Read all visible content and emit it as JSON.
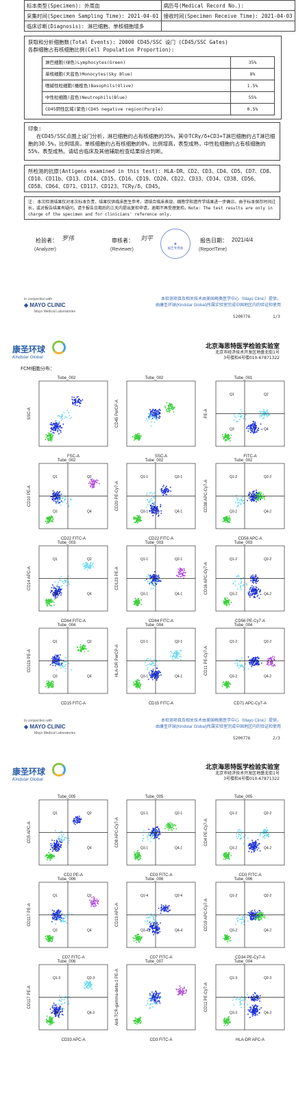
{
  "header_rows": [
    {
      "left": "标本类型(Specimen): 外周血",
      "right": "病历号(Medical Record No.):"
    },
    {
      "left": "采集时间(Specimen Sampling Time): 2021-04-01",
      "right": "接收时间(Specimen Receive Time): 2021-04-03"
    },
    {
      "left": "临床诊断(Diagnosis): 淋巴细胞、单核细胞增多",
      "right": ""
    }
  ],
  "events": {
    "line1": "获取和分析细胞数(Total Events): 20000   CD45/SSC 设门 (CD45/SSC Gates)",
    "line2": "各群细胞占有核细胞比例(Cell Population Proportion):"
  },
  "populations": [
    {
      "name": "淋巴细胞(绿色)Lymphocytes(Green)",
      "value": "35%"
    },
    {
      "name": "单核细胞(天蓝色)Monocytes(Sky Blue)",
      "value": "8%"
    },
    {
      "name": "嗜碱性粒细胞(橄榄色)Basophils(Olive)",
      "value": "1.5%"
    },
    {
      "name": "中性粒细胞(蓝色)Neutrophils(Blue)",
      "value": "55%"
    },
    {
      "name": "CD45阴性区域(紫色)CD45 negative region(Purple)",
      "value": "0.5%"
    }
  ],
  "impression": {
    "title": "印象:",
    "text": "在CD45/SSC点图上设门分析，淋巴细胞约占有核细胞的35%，其中TCRγ/δ+CD3+T淋巴细胞约占T淋巴细胞的30.5%，比例增高，单核细胞约占有核细胞的8%，比例增高，表型成熟，中性粒细胞约占有核细胞的55%，表型成熟。请结合临床及其他辅助检查结果综合判断。"
  },
  "antigens": "所检测的抗原(Antigens examined in this test): HLA-DR、CD2、CD3、CD4、CD5、CD7、CD8、CD10、CD11b、CD13、CD14、CD15、CD16、CD19、CD20、CD22、CD33、CD34、CD38、CD56、CD58、CD64、CD71、CD117、CD123、TCRγ/δ、CD45。",
  "note": "注: 本次检测结果仅对本次标本负责，结果仅供临床医生参考。请结合临床表现、细胞学和遗传学结果进一步确诊。由于标本保存时间过长，或对报告结果有疑问，请于报告日期后的三天内提出复检申请，逾期不再受理复检。Note: The test results are only in charge of the specimen and for clinicians' reference only.",
  "signatures": {
    "analyzer_label": "检验者：",
    "analyzer_en": "(Analyzer)",
    "reviewer_label": "审核者：",
    "reviewer_en": "(Reviewer)",
    "date_label": "报告日期：",
    "date_value": "2021/4/4",
    "date_en": "(ReportTime)",
    "stamp_text": "报告专用章"
  },
  "footer": {
    "mayo_small": "In conjunction with",
    "mayo_name": "MAYO CLINIC",
    "mayo_sub": "Mayo Medical Laboratories",
    "note_line1": "本检测项目及相关技术由美国梅奥医学中心（Mayo Clinic）提供，",
    "note_line2": "由康圣环球(Kindstar Global)所属实验室完成中国地区内的验证和使用",
    "code": "5200776",
    "page1": "1/3",
    "page2": "2/3"
  },
  "lab": {
    "logo_cn": "康圣环球",
    "logo_en": "Kindstar Global",
    "name": "北京海思特医学检验实验室",
    "addr1": "北京市经济技术开发区地盛北街1号",
    "addr2": "3号楼和4号楼010-67871322"
  },
  "fcm_title": "FCM细胞分布：",
  "plots_page2": [
    {
      "tube": "Tube_002",
      "x": "FSC-A",
      "y": "SSC-A",
      "quads": []
    },
    {
      "tube": "Tube_002",
      "x": "SSC-A",
      "y": "CD45 PerCP-A",
      "quads": []
    },
    {
      "tube": "Tube_001",
      "x": "FITC-A",
      "y": "PE-A",
      "quads": [
        "Q1",
        "Q2",
        "Q3",
        "Q4"
      ]
    },
    {
      "tube": "Tube_002",
      "x": "CD22 FITC-A",
      "y": "CD10 PE-A",
      "quads": [
        "Q1",
        "Q2",
        "Q3",
        "Q4"
      ]
    },
    {
      "tube": "Tube_002",
      "x": "CD22 FITC-A",
      "y": "CD20 PE-Cy7-A",
      "quads": [
        "Q1-1",
        "Q2-1",
        "Q3-1",
        "Q4-1"
      ]
    },
    {
      "tube": "Tube_002",
      "x": "CD58 APC-A",
      "y": "CD38 APC-Cy7-A",
      "quads": [
        "Q1-2",
        "Q2-2",
        "Q3-2",
        "Q4-2"
      ]
    },
    {
      "tube": "Tube_003",
      "x": "CD64 FITC-A",
      "y": "CD14 APC-A",
      "quads": [
        "Q1",
        "Q2",
        "Q3",
        "Q4"
      ]
    },
    {
      "tube": "Tube_003",
      "x": "CD64 FITC-A",
      "y": "CD123 PE-A",
      "quads": [
        "Q1-1",
        "Q2-1",
        "Q3-1",
        "Q4-1"
      ]
    },
    {
      "tube": "Tube_003",
      "x": "CD56 PE-Cy7-A",
      "y": "CD16 APC-Cy7-A",
      "quads": [
        "Q1-2",
        "Q2-2",
        "Q3-2",
        "Q4-2"
      ]
    },
    {
      "tube": "Tube_004",
      "x": "CD15 FITC-A",
      "y": "CD11b PE-A",
      "quads": [
        "Q1",
        "Q2",
        "Q3",
        "Q4"
      ]
    },
    {
      "tube": "Tube_004",
      "x": "CD15 FITC-A",
      "y": "HLA-DR PerCP-A",
      "quads": [
        "Q1-1",
        "Q2-1",
        "Q3-1",
        "Q4-1"
      ]
    },
    {
      "tube": "Tube_004",
      "x": "CD71 APC-Cy7-A",
      "y": "CD11 PE-Cy7-A",
      "quads": [
        "Q1-2",
        "Q2-2",
        "Q3-2",
        "Q4-2"
      ]
    }
  ],
  "plots_page3": [
    {
      "tube": "Tube_005",
      "x": "CD2 PE-A",
      "y": "CD5 APC-A",
      "quads": [
        "Q1",
        "Q2",
        "Q3",
        "Q4"
      ]
    },
    {
      "tube": "Tube_005",
      "x": "CD3 FITC-A",
      "y": "CD8 APC-Cy7-A",
      "quads": [
        "Q1-1",
        "Q2-1",
        "Q3-1",
        "Q4-1"
      ]
    },
    {
      "tube": "Tube_005",
      "x": "CD3 FITC-A",
      "y": "CD4 PE-Cy7-A",
      "quads": [
        "Q1-2",
        "Q2-2",
        "Q3-2",
        "Q4-2"
      ]
    },
    {
      "tube": "Tube_006",
      "x": "CD7 FITC-A",
      "y": "CD117 PE-A",
      "quads": [
        "Q1",
        "Q2",
        "Q3",
        "Q4"
      ]
    },
    {
      "tube": "Tube_006",
      "x": "CD7 FITC-A",
      "y": "CD13 APC-A",
      "quads": [
        "Q1-4",
        "Q2-4",
        "Q3-4",
        "Q4-4"
      ]
    },
    {
      "tube": "Tube_006",
      "x": "CD34 PE-Cy7-A",
      "y": "CD19 APC-Cy7-A",
      "quads": [
        "Q1-2",
        "Q2-2",
        "Q3-2",
        "Q4-2"
      ]
    },
    {
      "tube": "Tube_006",
      "x": "CD33 APC-A",
      "y": "CD117 PE-A",
      "quads": [
        "Q1-3",
        "Q2-3",
        "Q3-3",
        "Q4-3"
      ]
    },
    {
      "tube": "Tube_007",
      "x": "CD3 FITC-A",
      "y": "Anti-TCR-gamma-delta-1 PE-A",
      "quads": []
    },
    {
      "tube": "Tube_004",
      "x": "HLA-DR APC-A",
      "y": "CD11 PE-Cy7-A",
      "quads": [
        "Q1-3",
        "Q2-3",
        "Q3-3",
        "Q4-3"
      ]
    }
  ],
  "colors": {
    "blue": "#1a2fd8",
    "green": "#3ad13a",
    "sky": "#66d9f0",
    "purple": "#b04ad8",
    "olive": "#8a8a2a",
    "footer_blue": "#3a6bb5"
  }
}
